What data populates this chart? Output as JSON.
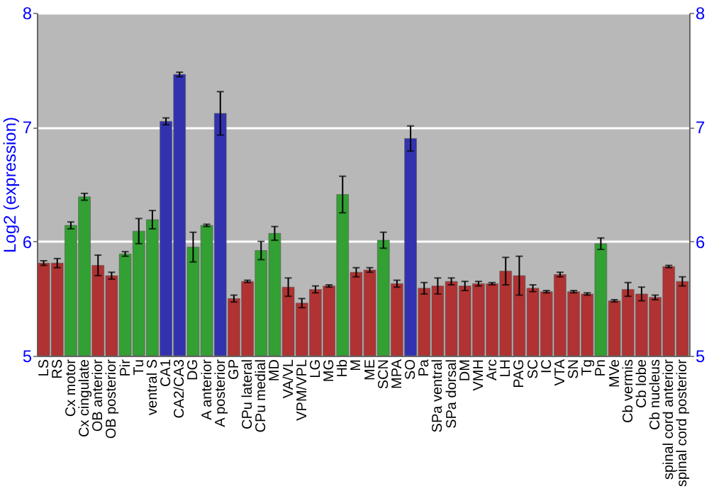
{
  "chart_data": {
    "type": "bar",
    "ylabel": "Log2 (expression)",
    "categories": [
      "LS",
      "RS",
      "Cx motor",
      "Cx cingulate",
      "OB anterior",
      "OB posterior",
      "Pir",
      "Tu",
      "ventral S",
      "CA1",
      "CA2/CA3",
      "DG",
      "A anterior",
      "A posterior",
      "GP",
      "CPu lateral",
      "CPu medial",
      "MD",
      "VA/VL",
      "VPM/VPL",
      "LG",
      "MG",
      "Hb",
      "M",
      "ME",
      "SCN",
      "MPA",
      "SO",
      "Pa",
      "SPa ventral",
      "SPa dorsal",
      "DM",
      "VMH",
      "Arc",
      "LH",
      "PAG",
      "SC",
      "IC",
      "VTA",
      "SN",
      "Tg",
      "Pn",
      "MVe",
      "Cb vermis",
      "Cb lobe",
      "Cb nucleus",
      "spinal cord anterior",
      "spinal cord posterior"
    ],
    "values": [
      5.81,
      5.81,
      6.14,
      6.39,
      5.79,
      5.7,
      5.89,
      6.09,
      6.19,
      7.05,
      7.46,
      5.95,
      6.14,
      7.12,
      5.5,
      5.65,
      5.92,
      6.07,
      5.6,
      5.46,
      5.58,
      5.61,
      6.41,
      5.73,
      5.75,
      6.01,
      5.63,
      6.9,
      5.59,
      5.61,
      5.65,
      5.61,
      5.63,
      5.63,
      5.74,
      5.7,
      5.59,
      5.56,
      5.71,
      5.56,
      5.54,
      5.98,
      5.48,
      5.58,
      5.54,
      5.51,
      5.78,
      5.65
    ],
    "errors": [
      0.02,
      0.04,
      0.03,
      0.03,
      0.09,
      0.03,
      0.02,
      0.11,
      0.08,
      0.03,
      0.02,
      0.13,
      0.01,
      0.19,
      0.03,
      0.01,
      0.08,
      0.06,
      0.08,
      0.04,
      0.03,
      0.01,
      0.16,
      0.04,
      0.02,
      0.07,
      0.03,
      0.11,
      0.05,
      0.07,
      0.03,
      0.04,
      0.02,
      0.01,
      0.12,
      0.17,
      0.03,
      0.01,
      0.02,
      0.01,
      0.01,
      0.05,
      0.01,
      0.06,
      0.06,
      0.02,
      0.01,
      0.04
    ],
    "colors": [
      "#b03232",
      "#b03232",
      "#32a032",
      "#32a032",
      "#b03232",
      "#b03232",
      "#32a032",
      "#32a032",
      "#32a032",
      "#3232b0",
      "#3232b0",
      "#32a032",
      "#32a032",
      "#3232b0",
      "#b03232",
      "#b03232",
      "#32a032",
      "#32a032",
      "#b03232",
      "#b03232",
      "#b03232",
      "#b03232",
      "#32a032",
      "#b03232",
      "#b03232",
      "#32a032",
      "#b03232",
      "#3232b0",
      "#b03232",
      "#b03232",
      "#b03232",
      "#b03232",
      "#b03232",
      "#b03232",
      "#b03232",
      "#b03232",
      "#b03232",
      "#b03232",
      "#b03232",
      "#b03232",
      "#b03232",
      "#32a032",
      "#b03232",
      "#b03232",
      "#b03232",
      "#b03232",
      "#b03232",
      "#b03232"
    ],
    "ylim": [
      5,
      8
    ],
    "yticks": [
      5,
      6,
      7,
      8
    ],
    "y2lim": [
      5,
      8
    ],
    "y2ticks": [
      5,
      6,
      7,
      8
    ],
    "grid": "y"
  }
}
